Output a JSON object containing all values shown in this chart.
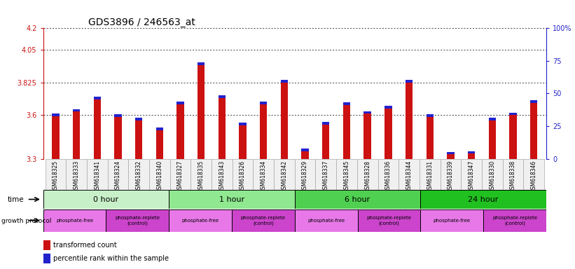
{
  "title": "GDS3896 / 246563_at",
  "samples": [
    "GSM618325",
    "GSM618333",
    "GSM618341",
    "GSM618324",
    "GSM618332",
    "GSM618340",
    "GSM618327",
    "GSM618335",
    "GSM618343",
    "GSM618326",
    "GSM618334",
    "GSM618342",
    "GSM618329",
    "GSM618337",
    "GSM618345",
    "GSM618328",
    "GSM618336",
    "GSM618344",
    "GSM618331",
    "GSM618339",
    "GSM618347",
    "GSM618330",
    "GSM618338",
    "GSM618346"
  ],
  "red_values": [
    3.595,
    3.625,
    3.71,
    3.59,
    3.565,
    3.495,
    3.675,
    3.945,
    3.72,
    3.53,
    3.675,
    3.825,
    3.35,
    3.535,
    3.67,
    3.61,
    3.645,
    3.825,
    3.59,
    3.33,
    3.335,
    3.565,
    3.6,
    3.685
  ],
  "blue_heights": [
    0.018,
    0.018,
    0.018,
    0.018,
    0.018,
    0.018,
    0.018,
    0.018,
    0.018,
    0.018,
    0.018,
    0.018,
    0.018,
    0.018,
    0.018,
    0.018,
    0.018,
    0.018,
    0.018,
    0.018,
    0.018,
    0.018,
    0.018,
    0.018
  ],
  "y_min": 3.3,
  "y_max": 4.2,
  "y_ticks": [
    3.3,
    3.6,
    3.825,
    4.05,
    4.2
  ],
  "right_y_ticks": [
    0,
    25,
    50,
    75,
    100
  ],
  "right_y_labels": [
    "0",
    "25",
    "50",
    "75",
    "100%"
  ],
  "time_groups": [
    {
      "label": "0 hour",
      "start": 0,
      "end": 6,
      "color": "#c8f0c8"
    },
    {
      "label": "1 hour",
      "start": 6,
      "end": 12,
      "color": "#90e890"
    },
    {
      "label": "6 hour",
      "start": 12,
      "end": 18,
      "color": "#50d050"
    },
    {
      "label": "24 hour",
      "start": 18,
      "end": 24,
      "color": "#20c020"
    }
  ],
  "protocol_groups": [
    {
      "label": "phosphate-free",
      "start": 0,
      "end": 3,
      "color": "#e878e8"
    },
    {
      "label": "phosphate-replete\n(control)",
      "start": 3,
      "end": 6,
      "color": "#cc44cc"
    },
    {
      "label": "phosphate-free",
      "start": 6,
      "end": 9,
      "color": "#e878e8"
    },
    {
      "label": "phosphate-replete\n(control)",
      "start": 9,
      "end": 12,
      "color": "#cc44cc"
    },
    {
      "label": "phosphate-free",
      "start": 12,
      "end": 15,
      "color": "#e878e8"
    },
    {
      "label": "phosphate-replete\n(control)",
      "start": 15,
      "end": 18,
      "color": "#cc44cc"
    },
    {
      "label": "phosphate-free",
      "start": 18,
      "end": 21,
      "color": "#e878e8"
    },
    {
      "label": "phosphate-replete\n(control)",
      "start": 21,
      "end": 24,
      "color": "#cc44cc"
    }
  ],
  "bar_width": 0.35,
  "red_color": "#cc1111",
  "blue_color": "#2222cc",
  "title_fontsize": 10,
  "tick_fontsize": 7,
  "sample_fontsize": 5.5,
  "bg_color": "#f0f0f0"
}
